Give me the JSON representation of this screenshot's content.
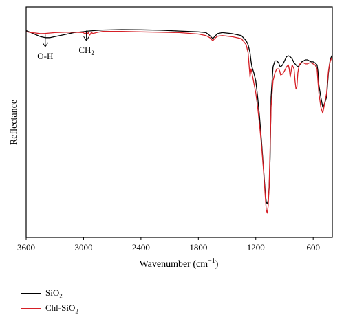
{
  "chart_data": {
    "type": "line",
    "title": "",
    "xlabel": "Wavenumber (cm",
    "xlabel_sup": "−1",
    "xlabel_close": ")",
    "ylabel": "Reflectance",
    "xlim": [
      3600,
      400
    ],
    "ylim": [
      0,
      100
    ],
    "x_reversed": true,
    "y_ticks_shown": false,
    "xticks": [
      3600,
      3000,
      2400,
      1800,
      1200,
      600
    ],
    "xtick_labels": [
      "3600",
      "3000",
      "2400",
      "1800",
      "1200",
      "600"
    ],
    "grid": false,
    "legend_position": "below-left",
    "annotations": [
      {
        "label": "O-H",
        "x": 3400,
        "y_tip": 85,
        "y_top": 91
      },
      {
        "label_main": "CH",
        "label_sub": "2",
        "x": 2970,
        "y_tip": 88,
        "y_top": 93
      }
    ],
    "series": [
      {
        "name": "SiO",
        "name_sub": "2",
        "color": "#000000",
        "x": [
          3600,
          3550,
          3500,
          3450,
          3400,
          3350,
          3300,
          3200,
          3100,
          3000,
          2950,
          2900,
          2800,
          2600,
          2400,
          2200,
          2000,
          1800,
          1720,
          1680,
          1650,
          1620,
          1600,
          1550,
          1450,
          1350,
          1300,
          1280,
          1260,
          1250,
          1240,
          1220,
          1200,
          1180,
          1160,
          1140,
          1120,
          1100,
          1090,
          1080,
          1070,
          1060,
          1050,
          1040,
          1020,
          1000,
          980,
          960,
          950,
          940,
          920,
          900,
          880,
          860,
          840,
          820,
          800,
          780,
          760,
          750,
          740,
          720,
          700,
          680,
          660,
          640,
          620,
          600,
          580,
          560,
          550,
          540,
          520,
          500,
          480,
          460,
          450,
          440,
          430,
          420,
          410,
          400
        ],
        "y": [
          93,
          92,
          91,
          90,
          89.5,
          89.5,
          90,
          91,
          92,
          92.5,
          92.8,
          93,
          93.3,
          93.5,
          93.4,
          93.2,
          92.8,
          92.4,
          92,
          90.5,
          89,
          90.5,
          91.5,
          92,
          91.5,
          90.5,
          88,
          86,
          82,
          78,
          75,
          72,
          68,
          60,
          50,
          38,
          25,
          12,
          8,
          7,
          9,
          15,
          30,
          60,
          75,
          78,
          78,
          77,
          75.5,
          75,
          76,
          78,
          80,
          80.5,
          80,
          79,
          77,
          76,
          75,
          75.5,
          76,
          77.5,
          78,
          78.5,
          78.5,
          78,
          77.5,
          77.5,
          77,
          76,
          73,
          66,
          60,
          55,
          57,
          60,
          66,
          72,
          76,
          79,
          80,
          81
        ]
      },
      {
        "name": "Chl-SiO",
        "name_sub": "2",
        "color": "#d61f26",
        "x": [
          3600,
          3550,
          3500,
          3450,
          3400,
          3350,
          3300,
          3200,
          3100,
          3000,
          2985,
          2970,
          2960,
          2950,
          2935,
          2920,
          2900,
          2850,
          2800,
          2600,
          2400,
          2200,
          2000,
          1800,
          1720,
          1680,
          1650,
          1620,
          1600,
          1550,
          1450,
          1350,
          1300,
          1280,
          1270,
          1260,
          1250,
          1240,
          1220,
          1200,
          1180,
          1160,
          1140,
          1120,
          1100,
          1090,
          1080,
          1070,
          1060,
          1050,
          1040,
          1020,
          1000,
          980,
          960,
          950,
          940,
          920,
          900,
          880,
          860,
          850,
          840,
          830,
          820,
          800,
          790,
          780,
          770,
          760,
          750,
          740,
          720,
          700,
          680,
          660,
          640,
          620,
          600,
          580,
          560,
          550,
          540,
          520,
          500,
          480,
          460,
          450,
          440,
          430,
          420,
          410,
          400
        ],
        "y": [
          92.5,
          92,
          91.8,
          91.5,
          91.6,
          91.8,
          92,
          92.2,
          92.2,
          92,
          91.2,
          92,
          91.5,
          92,
          90.8,
          92,
          91.6,
          92.2,
          92.6,
          92.6,
          92.4,
          92.2,
          92,
          91.3,
          90.5,
          89.5,
          88,
          89.5,
          90.2,
          90.5,
          90,
          89,
          86,
          82,
          76,
          70,
          74,
          72,
          67,
          62,
          55,
          46,
          36,
          24,
          10,
          4,
          2.5,
          6,
          16,
          35,
          55,
          68,
          72,
          74,
          74,
          73,
          71,
          71.5,
          73,
          75,
          76,
          74,
          70,
          73,
          76,
          74,
          68,
          64,
          65,
          72,
          75,
          76.5,
          77,
          77,
          76.5,
          76.5,
          77,
          77,
          76.5,
          76,
          74,
          68,
          62,
          55,
          52,
          57,
          62,
          68,
          73,
          76,
          78,
          79,
          80
        ]
      }
    ]
  }
}
